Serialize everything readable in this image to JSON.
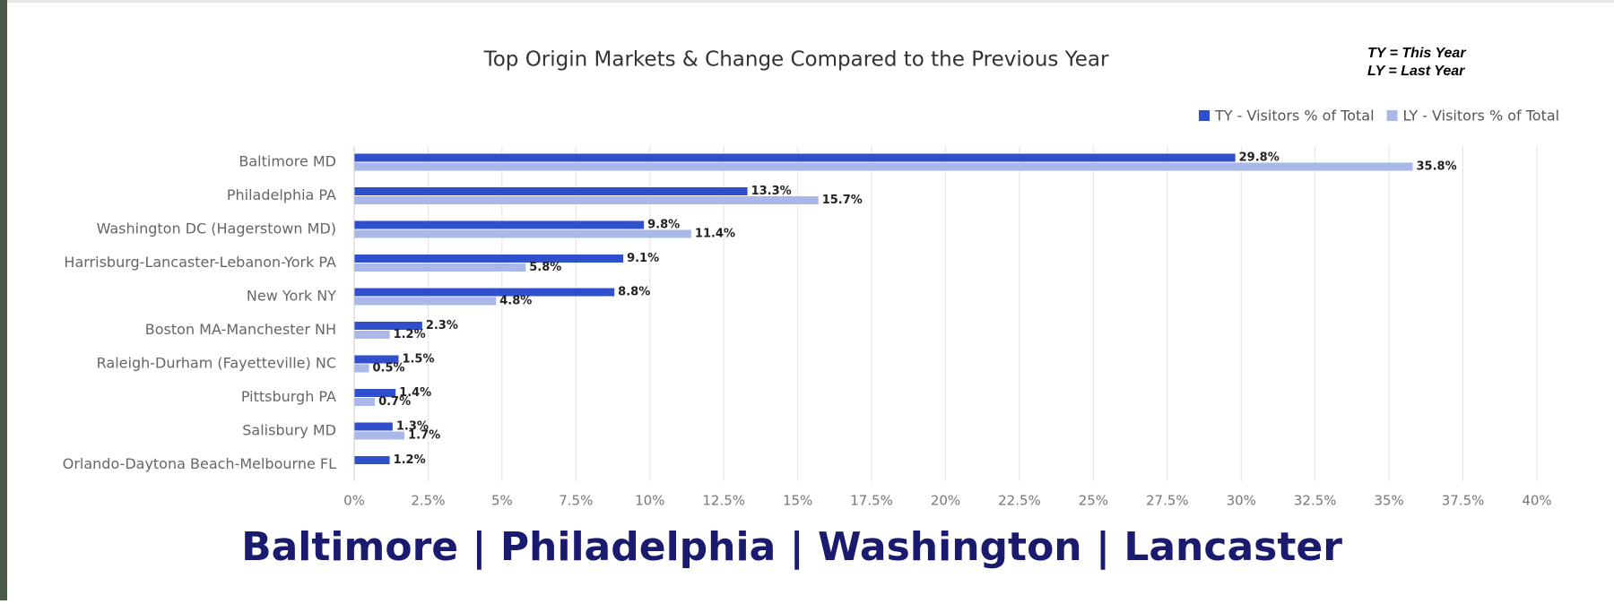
{
  "chart_data": {
    "type": "bar",
    "orientation": "horizontal",
    "title": "Top Origin Markets & Change Compared to the Previous Year",
    "annotations": [
      "TY = This Year",
      "LY = Last Year"
    ],
    "caption": "Baltimore | Philadelphia | Washington | Lancaster",
    "categories": [
      "Baltimore MD",
      "Philadelphia PA",
      "Washington DC (Hagerstown MD)",
      "Harrisburg-Lancaster-Lebanon-York PA",
      "New York NY",
      "Boston MA-Manchester NH",
      "Raleigh-Durham (Fayetteville) NC",
      "Pittsburgh PA",
      "Salisbury MD",
      "Orlando-Daytona Beach-Melbourne FL"
    ],
    "series": [
      {
        "name": "TY - Visitors % of Total",
        "color": "#2f4fcc",
        "values": [
          29.8,
          13.3,
          9.8,
          9.1,
          8.8,
          2.3,
          1.5,
          1.4,
          1.3,
          1.2
        ],
        "value_labels": [
          "29.8%",
          "13.3%",
          "9.8%",
          "9.1%",
          "8.8%",
          "2.3%",
          "1.5%",
          "1.4%",
          "1.3%",
          "1.2%"
        ]
      },
      {
        "name": "LY - Visitors % of Total",
        "color": "#a9b8e8",
        "values": [
          35.8,
          15.7,
          11.4,
          5.8,
          4.8,
          1.2,
          0.5,
          0.7,
          1.7,
          null
        ],
        "value_labels": [
          "35.8%",
          "15.7%",
          "11.4%",
          "5.8%",
          "4.8%",
          "1.2%",
          "0.5%",
          "0.7%",
          "1.7%",
          null
        ]
      }
    ],
    "xlim": [
      0,
      40
    ],
    "xticks": [
      {
        "value": 0,
        "label": "0%"
      },
      {
        "value": 2.5,
        "label": "2.5%"
      },
      {
        "value": 5,
        "label": "5%"
      },
      {
        "value": 7.5,
        "label": "7.5%"
      },
      {
        "value": 10,
        "label": "10%"
      },
      {
        "value": 12.5,
        "label": "12.5%"
      },
      {
        "value": 15,
        "label": "15%"
      },
      {
        "value": 17.5,
        "label": "17.5%"
      },
      {
        "value": 20,
        "label": "20%"
      },
      {
        "value": 22.5,
        "label": "22.5%"
      },
      {
        "value": 25,
        "label": "25%"
      },
      {
        "value": 27.5,
        "label": "27.5%"
      },
      {
        "value": 30,
        "label": "30%"
      },
      {
        "value": 32.5,
        "label": "32.5%"
      },
      {
        "value": 35,
        "label": "35%"
      },
      {
        "value": 37.5,
        "label": "37.5%"
      },
      {
        "value": 40,
        "label": "40%"
      }
    ],
    "grid": true,
    "legend": "top-right"
  }
}
